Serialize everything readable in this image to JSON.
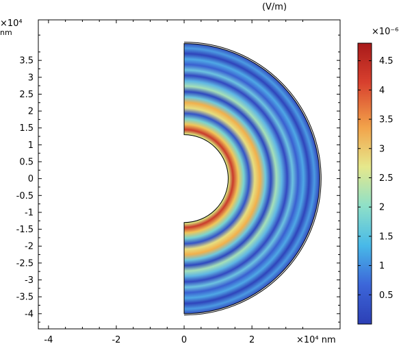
{
  "chart_data": {
    "type": "heatmap",
    "title": "",
    "unit_label": "(V/m)",
    "x_axis": {
      "range": [
        -4.3,
        4.6
      ],
      "ticks": [
        {
          "v": -4,
          "label": "-4"
        },
        {
          "v": -2,
          "label": "-2"
        },
        {
          "v": 0,
          "label": "0"
        },
        {
          "v": 2,
          "label": "2"
        }
      ],
      "exponent_label": "×10⁴ nm"
    },
    "y_axis": {
      "range": [
        -4.45,
        4.7
      ],
      "ticks": [
        {
          "v": 3.5,
          "label": "3.5"
        },
        {
          "v": 3,
          "label": "3"
        },
        {
          "v": 2.5,
          "label": "2.5"
        },
        {
          "v": 2,
          "label": "2"
        },
        {
          "v": 1.5,
          "label": "1.5"
        },
        {
          "v": 1,
          "label": "1"
        },
        {
          "v": 0.5,
          "label": "0.5"
        },
        {
          "v": 0,
          "label": "0"
        },
        {
          "v": -0.5,
          "label": "-0.5"
        },
        {
          "v": -1,
          "label": "-1"
        },
        {
          "v": -1.5,
          "label": "-1.5"
        },
        {
          "v": -2,
          "label": "-2"
        },
        {
          "v": -2.5,
          "label": "-2.5"
        },
        {
          "v": -3,
          "label": "-3"
        },
        {
          "v": -3.5,
          "label": "-3.5"
        },
        {
          "v": -4,
          "label": "-4"
        }
      ],
      "exponent_label": "×10⁴",
      "unit": "nm"
    },
    "domain": {
      "shape": "half-annulus",
      "inner_radius": 1.3,
      "outer_radius": 4.0
    },
    "colorbar": {
      "range": [
        0,
        4.8
      ],
      "ticks": [
        {
          "v": 0.5,
          "label": "0.5"
        },
        {
          "v": 1,
          "label": "1"
        },
        {
          "v": 1.5,
          "label": "1.5"
        },
        {
          "v": 2,
          "label": "2"
        },
        {
          "v": 2.5,
          "label": "2.5"
        },
        {
          "v": 3,
          "label": "3"
        },
        {
          "v": 3.5,
          "label": "3.5"
        },
        {
          "v": 4,
          "label": "4"
        },
        {
          "v": 4.5,
          "label": "4.5"
        }
      ],
      "exponent_label": "×10⁻⁶",
      "colormap": [
        "#2c3fb5",
        "#3c66d9",
        "#48b9e8",
        "#8ee0c8",
        "#e6e88c",
        "#f2a34a",
        "#d8402e",
        "#a81a1a"
      ]
    }
  }
}
